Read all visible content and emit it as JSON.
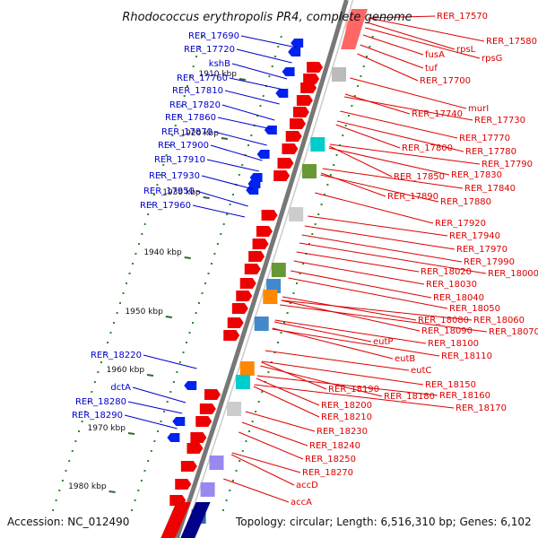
{
  "title": "Rhodococcus erythropolis PR4, complete genome",
  "accession": "Accession: NC_012490",
  "topology": "Topology: circular; Length: 6,516,310 bp; Genes: 6,102",
  "colors": {
    "minus_strand_label": "#0000cc",
    "plus_strand_label": "#dd0000",
    "minus_gene": "#0022ee",
    "plus_gene": "#ee0000",
    "scale_tick": "#336633",
    "backbone": "#777777"
  },
  "scale_ticks": [
    "1910 kbp",
    "1920 kbp",
    "1930 kbp",
    "1940 kbp",
    "1950 kbp",
    "1960 kbp",
    "1970 kbp",
    "1980 kbp"
  ],
  "left_labels": [
    "RER_17690",
    "RER_17720",
    "kshB",
    "RER_17760",
    "RER_17810",
    "RER_17820",
    "RER_17860",
    "RER_17870",
    "RER_17900",
    "RER_17910",
    "RER_17930",
    "RER_17950",
    "RER_17960",
    "RER_18220",
    "dctA",
    "RER_18280",
    "RER_18290"
  ],
  "right_labels": [
    "RER_17570",
    "RER_17580",
    "rpsL",
    "rpsG",
    "fusA",
    "tuf",
    "RER_17700",
    "murI",
    "RER_17740",
    "RER_17730",
    "RER_17770",
    "RER_17780",
    "RER_17790",
    "RER_17800",
    "RER_17830",
    "RER_17850",
    "RER_17840",
    "RER_17890",
    "RER_17880",
    "RER_17920",
    "RER_17940",
    "RER_17970",
    "RER_17990",
    "RER_18000",
    "RER_18020",
    "RER_18030",
    "RER_18040",
    "RER_18050",
    "RER_18060",
    "RER_18080",
    "RER_18070",
    "RER_18090",
    "eutP",
    "RER_18100",
    "RER_18110",
    "eutB",
    "eutC",
    "RER_18150",
    "RER_18190",
    "RER_18180",
    "RER_18160",
    "RER_18170",
    "RER_18200",
    "RER_18210",
    "RER_18230",
    "RER_18240",
    "RER_18250",
    "accD",
    "RER_18270",
    "accA"
  ]
}
